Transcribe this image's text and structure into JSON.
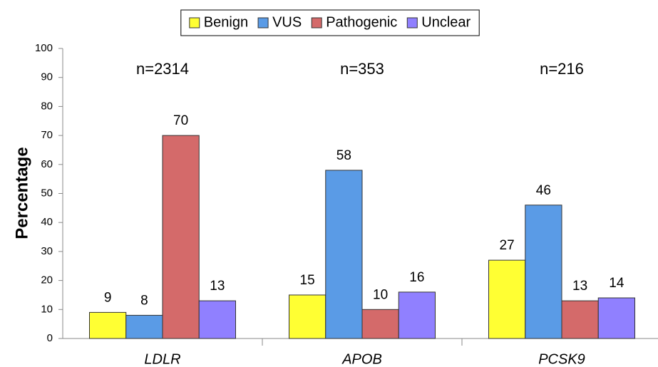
{
  "chart_data": {
    "type": "bar",
    "categories": [
      "LDLR",
      "APOB",
      "PCSK9"
    ],
    "annotations": [
      "n=2314",
      "n=353",
      "n=216"
    ],
    "y_label": "Percentage",
    "series": [
      {
        "name": "Benign",
        "color": "#ffff33",
        "values": [
          9,
          15,
          27
        ]
      },
      {
        "name": "VUS",
        "color": "#5a9be6",
        "values": [
          8,
          58,
          46
        ]
      },
      {
        "name": "Pathogenic",
        "color": "#d46a6a",
        "values": [
          70,
          10,
          13
        ]
      },
      {
        "name": "Unclear",
        "color": "#9080ff",
        "values": [
          13,
          16,
          14
        ]
      }
    ],
    "ylim": [
      0,
      100
    ],
    "yticks": [
      0,
      10,
      20,
      30,
      40,
      50,
      60,
      70,
      80,
      90,
      100
    ],
    "grid": false,
    "legend": "top"
  }
}
